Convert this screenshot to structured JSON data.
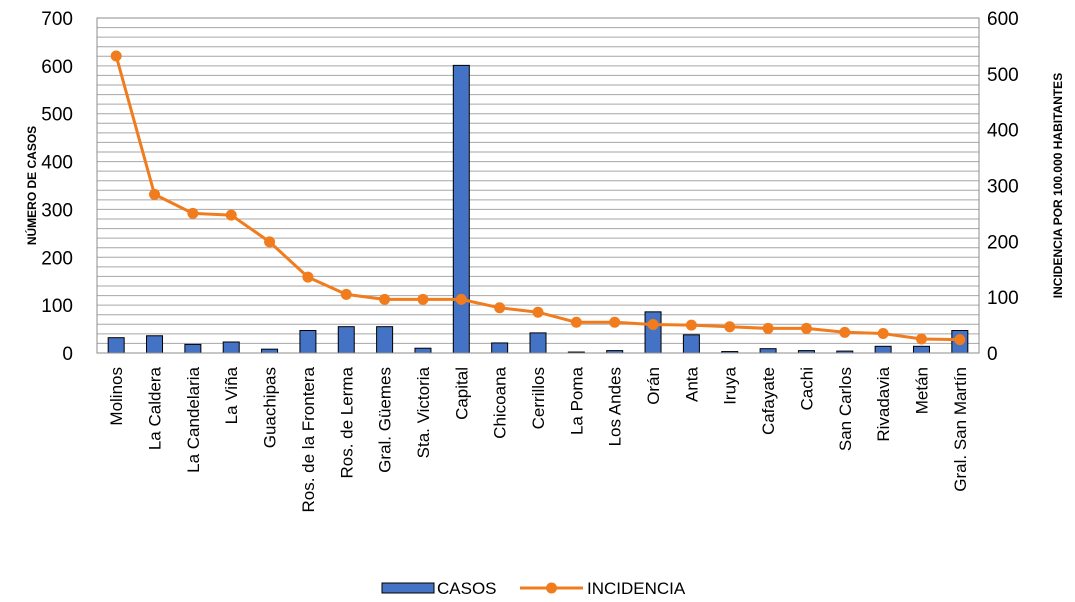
{
  "chart_data": {
    "type": "bar+line",
    "categories": [
      "Molinos",
      "La Caldera",
      "La Candelaria",
      "La Viña",
      "Guachipas",
      "Ros. de la Frontera",
      "Ros. de Lerma",
      "Gral. Güemes",
      "Sta. Victoria",
      "Capital",
      "Chicoana",
      "Cerrillos",
      "La Poma",
      "Los Andes",
      "Orán",
      "Anta",
      "Iruya",
      "Cafayate",
      "Cachi",
      "San Carlos",
      "Rivadavia",
      "Metán",
      "Gral. San Martín"
    ],
    "series": [
      {
        "name": "CASOS",
        "type": "bar",
        "axis": "left",
        "color": "#4472C4",
        "values": [
          32,
          36,
          18,
          23,
          8,
          47,
          55,
          55,
          10,
          601,
          21,
          42,
          2,
          5,
          86,
          38,
          3,
          9,
          5,
          4,
          14,
          14,
          47
        ]
      },
      {
        "name": "INCIDENCIA",
        "type": "line",
        "axis": "right",
        "color": "#F07C1E",
        "values": [
          532,
          284,
          250,
          247,
          199,
          136,
          105,
          96,
          96,
          96,
          81,
          73,
          55,
          55,
          51,
          50,
          47,
          44,
          44,
          37,
          35,
          25,
          24
        ]
      }
    ],
    "ylabel": "NÚMERO DE CASOS",
    "y2label": "INCIDENCIA POR 100.000 HABITANTES",
    "ylim": [
      0,
      700
    ],
    "y2lim": [
      0,
      600
    ],
    "yticks": [
      0,
      100,
      200,
      300,
      400,
      500,
      600,
      700
    ],
    "y2ticks": [
      0,
      100,
      200,
      300,
      400,
      500,
      600
    ],
    "grid": true,
    "legend": "bottom"
  }
}
